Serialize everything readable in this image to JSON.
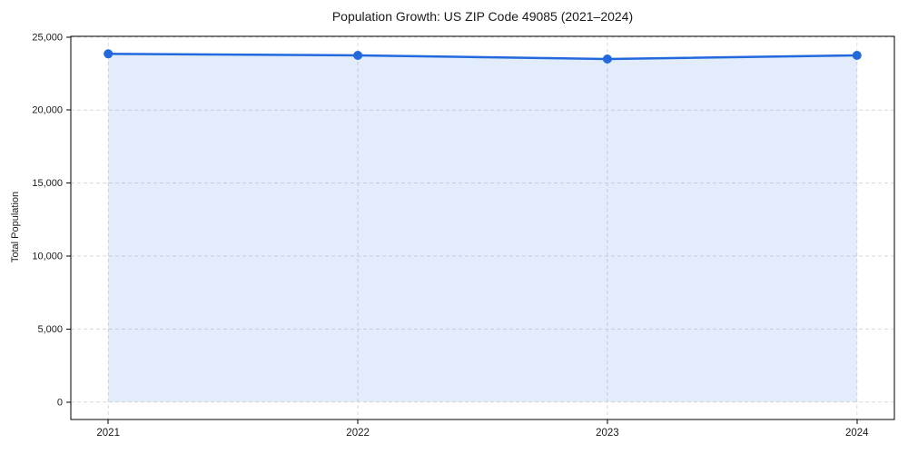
{
  "chart_data": {
    "type": "area",
    "title": "Population Growth: US ZIP Code 49085 (2021–2024)",
    "categories": [
      "2021",
      "2022",
      "2023",
      "2024"
    ],
    "series": [
      {
        "name": "Total Population",
        "values": [
          23850,
          23750,
          23500,
          23750
        ]
      }
    ],
    "xlabel": "",
    "ylabel": "Total Population",
    "ylim": [
      0,
      25000
    ],
    "yticks": [
      0,
      5000,
      10000,
      15000,
      20000,
      25000
    ],
    "ytick_labels": [
      "0",
      "5,000",
      "10,000",
      "15,000",
      "20,000",
      "25,000"
    ],
    "xtick_labels": [
      "2021",
      "2022",
      "2023",
      "2024"
    ],
    "grid": "dashed",
    "legend": "none",
    "colors": {
      "line": "#2169dc",
      "marker": "#2169dc",
      "fill": "rgba(33,105,220,0.13)",
      "grid": "#d9d9d9",
      "spine": "#000000",
      "text": "#1a1a1a"
    }
  }
}
